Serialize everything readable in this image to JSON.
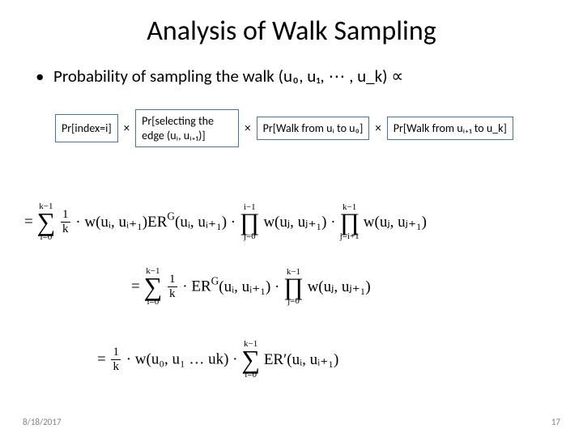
{
  "title": "Analysis of Walk Sampling",
  "bullet": {
    "prefix": "•",
    "text": "Probability of sampling the walk (u₀, u₁, ⋯ , u_k)  ∝"
  },
  "terms": {
    "t1": "Pr[index=i]",
    "t2": "Pr[selecting the edge (uᵢ, uᵢ₊₁)]",
    "t3": "Pr[Walk from uᵢ to u₀]",
    "t4": "Pr[Walk from uᵢ₊₁ to u_k]",
    "mult": "×"
  },
  "eq1": {
    "lead": "= ",
    "sum_top": "k−1",
    "sum_bot": "i=0",
    "frac_num": "1",
    "frac_den": "k",
    "mid1": " · w(uᵢ, uᵢ₊₁)ER",
    "sup1": "G",
    "mid2": "(uᵢ, uᵢ₊₁) · ",
    "prod1_top": "i−1",
    "prod1_bot": "j=0",
    "prod1_body": " w(uⱼ, uⱼ₊₁) · ",
    "prod2_top": "k−1",
    "prod2_bot": "j=i+1",
    "prod2_body": " w(uⱼ, uⱼ₊₁)"
  },
  "eq2": {
    "lead": "= ",
    "sum_top": "k−1",
    "sum_bot": "i=0",
    "frac_num": "1",
    "frac_den": "k",
    "mid1": " · ER",
    "sup1": "G",
    "mid2": "(uᵢ, uᵢ₊₁) · ",
    "prod_top": "k−1",
    "prod_bot": "j=0",
    "prod_body": " w(uⱼ, uⱼ₊₁)"
  },
  "eq3": {
    "lead": "= ",
    "frac_num": "1",
    "frac_den": "k",
    "mid1": " · w(u₀, u₁ … uk) · ",
    "sum_top": "k−1",
    "sum_bot": "i=0",
    "tail": " ER′(uᵢ, uᵢ₊₁)"
  },
  "footer": {
    "date": "8/18/2017",
    "page": "17"
  },
  "colors": {
    "box_border": "#4472c4",
    "text": "#000000",
    "footer": "#7f7f7f",
    "background": "#ffffff"
  },
  "typography": {
    "title_fontsize": 34,
    "body_fontsize": 21,
    "term_fontsize": 14,
    "eq_fontsize": 19,
    "footer_fontsize": 11,
    "font_family_body": "Calibri",
    "font_family_math": "Cambria Math"
  }
}
